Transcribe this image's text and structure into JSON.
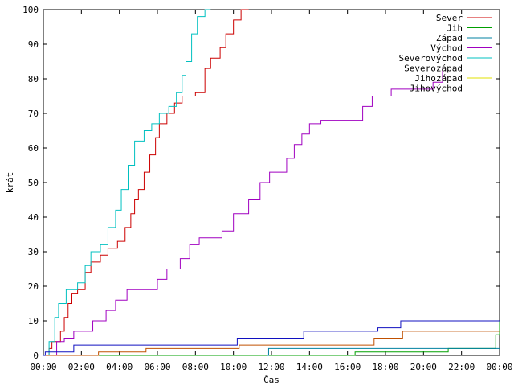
{
  "chart_data": {
    "type": "line",
    "xlabel": "Čas",
    "ylabel": "krát",
    "xlim": [
      0,
      24
    ],
    "ylim": [
      0,
      100
    ],
    "x_ticks": [
      {
        "value": 0,
        "label": "00:00"
      },
      {
        "value": 2,
        "label": "02:00"
      },
      {
        "value": 4,
        "label": "04:00"
      },
      {
        "value": 6,
        "label": "06:00"
      },
      {
        "value": 8,
        "label": "08:00"
      },
      {
        "value": 10,
        "label": "10:00"
      },
      {
        "value": 12,
        "label": "12:00"
      },
      {
        "value": 14,
        "label": "14:00"
      },
      {
        "value": 16,
        "label": "16:00"
      },
      {
        "value": 18,
        "label": "18:00"
      },
      {
        "value": 20,
        "label": "20:00"
      },
      {
        "value": 22,
        "label": "22:00"
      },
      {
        "value": 24,
        "label": "00:00"
      }
    ],
    "y_ticks": [
      0,
      10,
      20,
      30,
      40,
      50,
      60,
      70,
      80,
      90,
      100
    ],
    "grid": false,
    "legend_position": "top-right",
    "series": [
      {
        "name": "Sever",
        "color": "#cc0000",
        "points": [
          [
            0,
            0
          ],
          [
            0.3,
            2
          ],
          [
            0.45,
            4
          ],
          [
            0.9,
            7
          ],
          [
            1.1,
            11
          ],
          [
            1.3,
            15
          ],
          [
            1.5,
            18
          ],
          [
            1.8,
            19
          ],
          [
            2.2,
            24
          ],
          [
            2.5,
            27
          ],
          [
            3.0,
            29
          ],
          [
            3.4,
            31
          ],
          [
            3.9,
            33
          ],
          [
            4.3,
            37
          ],
          [
            4.6,
            41
          ],
          [
            4.8,
            45
          ],
          [
            5.0,
            48
          ],
          [
            5.3,
            53
          ],
          [
            5.6,
            58
          ],
          [
            5.9,
            63
          ],
          [
            6.1,
            67
          ],
          [
            6.5,
            70
          ],
          [
            6.9,
            73
          ],
          [
            7.3,
            75
          ],
          [
            8.0,
            76
          ],
          [
            8.5,
            83
          ],
          [
            8.8,
            86
          ],
          [
            9.3,
            89
          ],
          [
            9.6,
            93
          ],
          [
            10.0,
            97
          ],
          [
            10.4,
            100
          ],
          [
            10.8,
            100
          ]
        ]
      },
      {
        "name": "Jih",
        "color": "#00a000",
        "points": [
          [
            0,
            0
          ],
          [
            16.3,
            0
          ],
          [
            16.4,
            1
          ],
          [
            21.2,
            1
          ],
          [
            21.3,
            2
          ],
          [
            23.6,
            2
          ],
          [
            23.8,
            6
          ],
          [
            24,
            10
          ]
        ]
      },
      {
        "name": "Západ",
        "color": "#0080a0",
        "points": [
          [
            11.75,
            0
          ],
          [
            11.85,
            2
          ],
          [
            24,
            2
          ]
        ]
      },
      {
        "name": "Východ",
        "color": "#a000c0",
        "points": [
          [
            0,
            0
          ],
          [
            0.7,
            4
          ],
          [
            1.1,
            5
          ],
          [
            1.6,
            7
          ],
          [
            2.6,
            10
          ],
          [
            3.3,
            13
          ],
          [
            3.8,
            16
          ],
          [
            4.4,
            19
          ],
          [
            6.0,
            22
          ],
          [
            6.5,
            25
          ],
          [
            7.2,
            28
          ],
          [
            7.7,
            32
          ],
          [
            8.2,
            34
          ],
          [
            9.4,
            36
          ],
          [
            10.0,
            41
          ],
          [
            10.8,
            45
          ],
          [
            11.4,
            50
          ],
          [
            11.9,
            53
          ],
          [
            12.8,
            57
          ],
          [
            13.2,
            61
          ],
          [
            13.6,
            64
          ],
          [
            14.0,
            67
          ],
          [
            14.6,
            68
          ],
          [
            16.8,
            72
          ],
          [
            17.3,
            75
          ],
          [
            18.3,
            77
          ],
          [
            20.5,
            79
          ],
          [
            21.0,
            83
          ]
        ]
      },
      {
        "name": "Severovýchod",
        "color": "#00c0c0",
        "points": [
          [
            0,
            0
          ],
          [
            0.3,
            4
          ],
          [
            0.6,
            11
          ],
          [
            0.8,
            15
          ],
          [
            1.2,
            19
          ],
          [
            1.8,
            21
          ],
          [
            2.2,
            26
          ],
          [
            2.5,
            30
          ],
          [
            3.0,
            32
          ],
          [
            3.4,
            37
          ],
          [
            3.8,
            42
          ],
          [
            4.1,
            48
          ],
          [
            4.5,
            55
          ],
          [
            4.8,
            62
          ],
          [
            5.3,
            65
          ],
          [
            5.7,
            67
          ],
          [
            6.1,
            70
          ],
          [
            6.6,
            72
          ],
          [
            7.0,
            76
          ],
          [
            7.3,
            81
          ],
          [
            7.5,
            85
          ],
          [
            7.8,
            93
          ],
          [
            8.1,
            98
          ],
          [
            8.5,
            100
          ],
          [
            8.8,
            100
          ]
        ]
      },
      {
        "name": "Severozápad",
        "color": "#c05000",
        "points": [
          [
            0,
            0
          ],
          [
            2.8,
            0
          ],
          [
            2.9,
            1
          ],
          [
            5.2,
            1
          ],
          [
            5.4,
            2
          ],
          [
            10.1,
            2
          ],
          [
            10.3,
            3
          ],
          [
            17.2,
            3
          ],
          [
            17.4,
            5
          ],
          [
            18.7,
            5
          ],
          [
            18.9,
            7
          ],
          [
            24,
            7
          ]
        ]
      },
      {
        "name": "Jihozápad",
        "color": "#e0e000",
        "points": []
      },
      {
        "name": "Jihovýchod",
        "color": "#1010c0",
        "points": [
          [
            0,
            0
          ],
          [
            0.1,
            1
          ],
          [
            1.5,
            1
          ],
          [
            1.6,
            3
          ],
          [
            10.1,
            3
          ],
          [
            10.2,
            5
          ],
          [
            13.5,
            5
          ],
          [
            13.7,
            7
          ],
          [
            17.4,
            7
          ],
          [
            17.6,
            8
          ],
          [
            18.7,
            8
          ],
          [
            18.8,
            10
          ],
          [
            24,
            10
          ]
        ]
      }
    ]
  }
}
